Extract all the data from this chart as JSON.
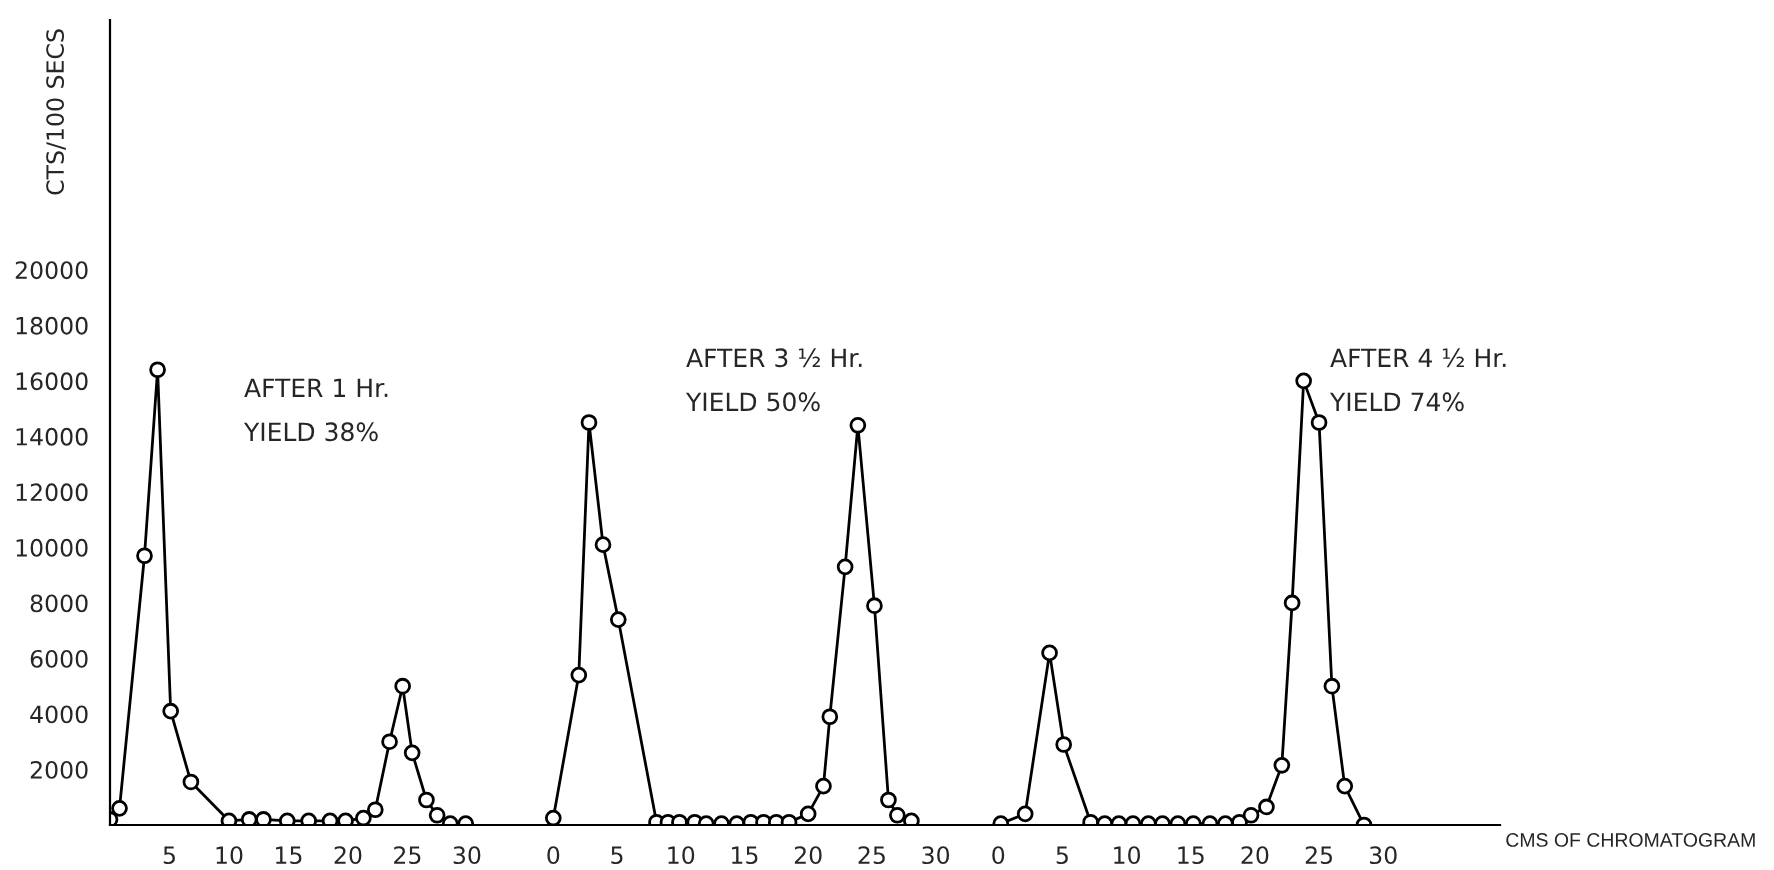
{
  "chart_data": [
    {
      "type": "line",
      "marker": "circle",
      "ylabel": "CTS/100 SECS",
      "xlim": [
        0,
        34.8
      ],
      "xticks": [
        5,
        10,
        15,
        20,
        25,
        30
      ],
      "ylim": [
        0,
        29000
      ],
      "yticks": [
        2000,
        4000,
        6000,
        8000,
        10000,
        12000,
        14000,
        16000,
        18000,
        20000
      ],
      "annotations": [
        "AFTER 1 Hr.",
        "YIELD 38%"
      ],
      "series": [
        {
          "color": "#000000",
          "x": [
            0,
            0.8,
            2.9,
            4.0,
            5.1,
            6.8,
            10.0,
            11.7,
            12.9,
            14.9,
            16.7,
            18.5,
            19.8,
            21.3,
            22.3,
            23.5,
            24.6,
            25.4,
            26.6,
            27.5,
            28.6,
            29.9
          ],
          "values": [
            200,
            600,
            9700,
            16400,
            4100,
            1550,
            150,
            200,
            200,
            150,
            150,
            150,
            150,
            250,
            550,
            3000,
            5000,
            2600,
            900,
            350,
            50,
            50
          ]
        }
      ]
    },
    {
      "type": "line",
      "marker": "circle",
      "xlim": [
        -2.3,
        32.7
      ],
      "xticks": [
        0,
        5,
        10,
        15,
        20,
        25,
        30
      ],
      "ylim": [
        0,
        20000
      ],
      "yticks": [
        2000,
        4000,
        6000,
        8000,
        10000,
        12000,
        14000,
        16000,
        18000,
        20000
      ],
      "tick_labels": "x",
      "annotations": [
        "AFTER 3 ½ Hr.",
        "YIELD 50%"
      ],
      "series": [
        {
          "color": "#000000",
          "x": [
            0,
            2.0,
            2.8,
            3.9,
            5.1,
            8.1,
            9.0,
            9.9,
            11.1,
            12.0,
            13.2,
            14.4,
            15.5,
            16.5,
            17.5,
            18.5,
            20.0,
            21.2,
            21.7,
            22.9,
            23.9,
            25.2,
            26.3,
            27.0,
            28.1
          ],
          "values": [
            250,
            5400,
            14500,
            10100,
            7400,
            100,
            100,
            100,
            100,
            50,
            50,
            50,
            100,
            100,
            100,
            100,
            400,
            1400,
            3900,
            9300,
            14400,
            7900,
            900,
            350,
            150
          ]
        }
      ]
    },
    {
      "type": "line",
      "marker": "circle",
      "xlabel": "CMS OF CHROMATOGRAM",
      "xlim": [
        -2.2,
        39.1
      ],
      "xticks": [
        0,
        5,
        10,
        15,
        20,
        25,
        30
      ],
      "ylim": [
        0,
        20000
      ],
      "yticks": [
        2000,
        4000,
        6000,
        8000,
        10000,
        12000,
        14000,
        16000,
        18000,
        20000
      ],
      "tick_labels": "x",
      "annotations": [
        "AFTER 4 ½ Hr.",
        "YIELD 74%"
      ],
      "series": [
        {
          "color": "#000000",
          "x": [
            0.2,
            2.1,
            4.0,
            5.1,
            7.2,
            8.3,
            9.4,
            10.5,
            11.7,
            12.8,
            14.0,
            15.2,
            16.5,
            17.7,
            18.8,
            19.7,
            20.9,
            22.1,
            22.9,
            23.8,
            25.0,
            26.0,
            27.0,
            28.5
          ],
          "values": [
            50,
            400,
            6200,
            2900,
            100,
            50,
            50,
            50,
            50,
            50,
            50,
            50,
            50,
            50,
            100,
            350,
            650,
            2150,
            8000,
            16000,
            14500,
            5000,
            1400,
            0
          ]
        }
      ]
    }
  ]
}
